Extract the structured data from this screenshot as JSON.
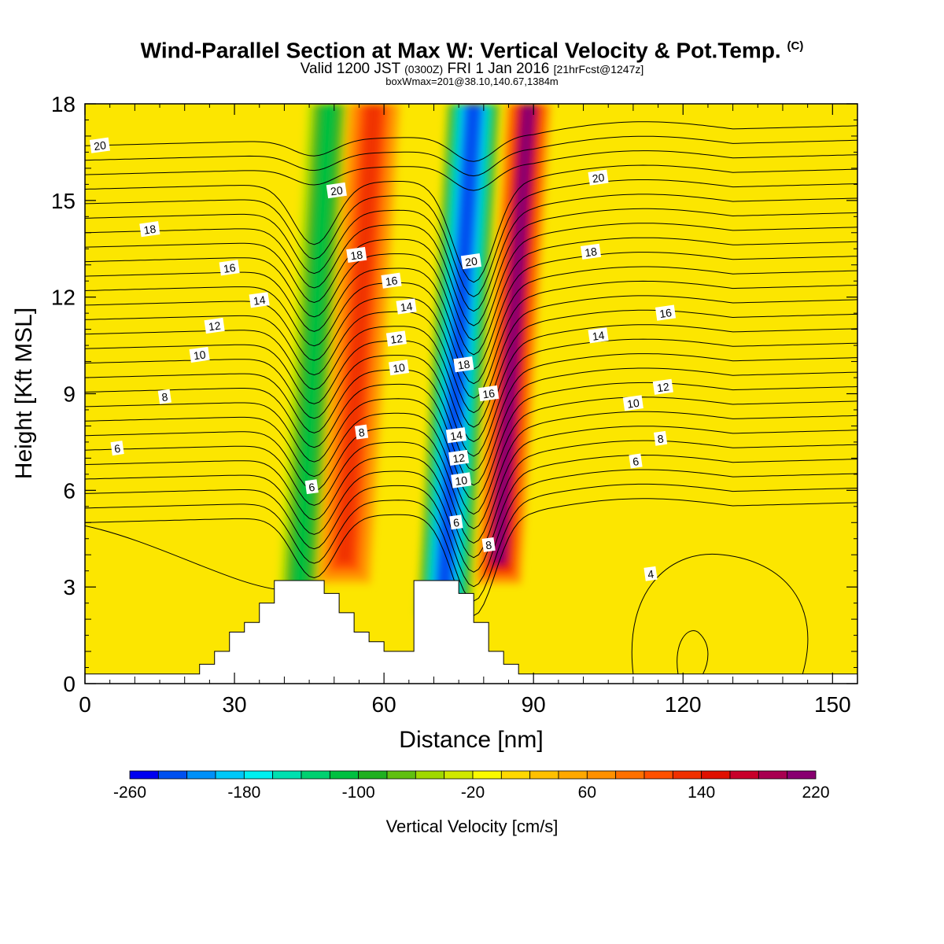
{
  "title": {
    "main": "Wind-Parallel Section at Max W: Vertical Velocity & Pot.Temp.",
    "copyright": "(C)",
    "valid_prefix": "Valid 1200 JST",
    "valid_utc": "(0300Z)",
    "valid_date": "FRI 1 Jan 2016",
    "forecast": "[21hrFcst@1247z]",
    "box_info": "boxWmax=201@38.10,140.67,1384m"
  },
  "chart_data": {
    "type": "heatmap",
    "xlabel": "Distance [nm]",
    "ylabel": "Height [Kft MSL]",
    "xlim": [
      0,
      155
    ],
    "ylim": [
      0,
      18
    ],
    "x_ticks": [
      0,
      30,
      60,
      90,
      120,
      150
    ],
    "y_ticks": [
      0,
      3,
      6,
      9,
      12,
      15,
      18
    ],
    "colorbar": {
      "label": "Vertical Velocity [cm/s]",
      "min": -260,
      "max": 220,
      "step": 20,
      "tick_labels": [
        "-260",
        "-180",
        "-100",
        "-20",
        "60",
        "140",
        "220"
      ],
      "colors": [
        "#0000f0",
        "#0050f0",
        "#0090f8",
        "#00c8f8",
        "#00f0f0",
        "#00e0b0",
        "#00d070",
        "#00c040",
        "#20b020",
        "#60c010",
        "#a0d800",
        "#d0e800",
        "#fafa00",
        "#ffd800",
        "#ffc000",
        "#ffa800",
        "#ff9000",
        "#ff7000",
        "#ff5000",
        "#f03000",
        "#e01000",
        "#c8002a",
        "#a80050",
        "#880070",
        "#6a0090"
      ]
    },
    "velocity_features": [
      {
        "name": "downdraft-west",
        "x": [
          38,
          48
        ],
        "z": [
          2,
          18
        ],
        "peak": -110
      },
      {
        "name": "updraft-west",
        "x": [
          46,
          58
        ],
        "z": [
          3,
          18
        ],
        "peak": 130
      },
      {
        "name": "downdraft-east",
        "x": [
          66,
          78
        ],
        "z": [
          2,
          18
        ],
        "peak": -230
      },
      {
        "name": "updraft-east",
        "x": [
          78,
          88
        ],
        "z": [
          3,
          18
        ],
        "peak": 200
      }
    ],
    "theta_contours": {
      "unit": "deg C",
      "levels": [
        4,
        6,
        8,
        10,
        12,
        14,
        16,
        18,
        20
      ],
      "labels": [
        {
          "text": "20",
          "x": 3,
          "z": 16.7
        },
        {
          "text": "20",
          "x": 50.5,
          "z": 15.3
        },
        {
          "text": "20",
          "x": 77.5,
          "z": 13.1
        },
        {
          "text": "20",
          "x": 103,
          "z": 15.7
        },
        {
          "text": "18",
          "x": 13,
          "z": 14.1
        },
        {
          "text": "18",
          "x": 54.5,
          "z": 13.3
        },
        {
          "text": "18",
          "x": 76,
          "z": 9.9
        },
        {
          "text": "18",
          "x": 101.5,
          "z": 13.4
        },
        {
          "text": "16",
          "x": 29,
          "z": 12.9
        },
        {
          "text": "16",
          "x": 61.5,
          "z": 12.5
        },
        {
          "text": "16",
          "x": 81,
          "z": 9.0
        },
        {
          "text": "16",
          "x": 116.5,
          "z": 11.5
        },
        {
          "text": "14",
          "x": 35,
          "z": 11.9
        },
        {
          "text": "14",
          "x": 64.5,
          "z": 11.7
        },
        {
          "text": "14",
          "x": 74.5,
          "z": 7.7
        },
        {
          "text": "14",
          "x": 103,
          "z": 10.8
        },
        {
          "text": "12",
          "x": 26,
          "z": 11.1
        },
        {
          "text": "12",
          "x": 62.5,
          "z": 10.7
        },
        {
          "text": "12",
          "x": 75,
          "z": 7.0
        },
        {
          "text": "12",
          "x": 116,
          "z": 9.2
        },
        {
          "text": "10",
          "x": 23,
          "z": 10.2
        },
        {
          "text": "10",
          "x": 63,
          "z": 9.8
        },
        {
          "text": "10",
          "x": 75.5,
          "z": 6.3
        },
        {
          "text": "10",
          "x": 110,
          "z": 8.7
        },
        {
          "text": "8",
          "x": 16,
          "z": 8.9
        },
        {
          "text": "8",
          "x": 55.5,
          "z": 7.8
        },
        {
          "text": "8",
          "x": 81,
          "z": 4.3
        },
        {
          "text": "8",
          "x": 115.5,
          "z": 7.6
        },
        {
          "text": "6",
          "x": 6.5,
          "z": 7.3
        },
        {
          "text": "6",
          "x": 45.5,
          "z": 6.1
        },
        {
          "text": "6",
          "x": 74.5,
          "z": 5.0
        },
        {
          "text": "6",
          "x": 110.5,
          "z": 6.9
        },
        {
          "text": "4",
          "x": 113.5,
          "z": 3.4
        }
      ]
    },
    "terrain": {
      "x": [
        0,
        20,
        23,
        26,
        29,
        32,
        35,
        38,
        45,
        48,
        51,
        54,
        57,
        60,
        66,
        72,
        75,
        78,
        81,
        84,
        87,
        155
      ],
      "z": [
        0.3,
        0.3,
        0.6,
        1.0,
        1.6,
        1.9,
        2.5,
        3.2,
        3.2,
        2.8,
        2.2,
        1.6,
        1.3,
        1.0,
        3.2,
        3.2,
        2.8,
        1.9,
        1.0,
        0.6,
        0.3,
        0.3
      ]
    }
  }
}
